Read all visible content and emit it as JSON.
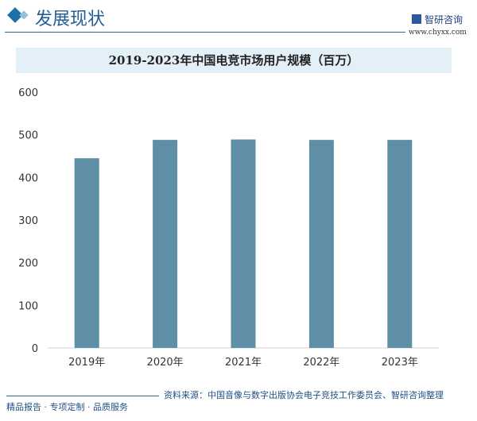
{
  "header": {
    "title": "发展现状",
    "logo_text": "智研咨询",
    "url": "www.chyxx.com"
  },
  "footer": {
    "source": "资料来源：中国音像与数字出版协会电子竞技工作委员会、智研咨询整理",
    "slogan": "精品报告 · 专项定制 · 品质服务"
  },
  "colors": {
    "bar": "#5f8fa6",
    "accent": "#1f6fa8",
    "title_band": "#e4f0f8"
  },
  "chart_data": {
    "type": "bar",
    "title": "2019-2023年中国电竞市场用户规模（百万）",
    "categories": [
      "2019年",
      "2020年",
      "2021年",
      "2022年",
      "2023年"
    ],
    "values": [
      445,
      488,
      489,
      488,
      488
    ],
    "ylim": [
      0,
      600
    ],
    "yticks": [
      0,
      100,
      200,
      300,
      400,
      500,
      600
    ],
    "grid": false,
    "legend": "none"
  }
}
